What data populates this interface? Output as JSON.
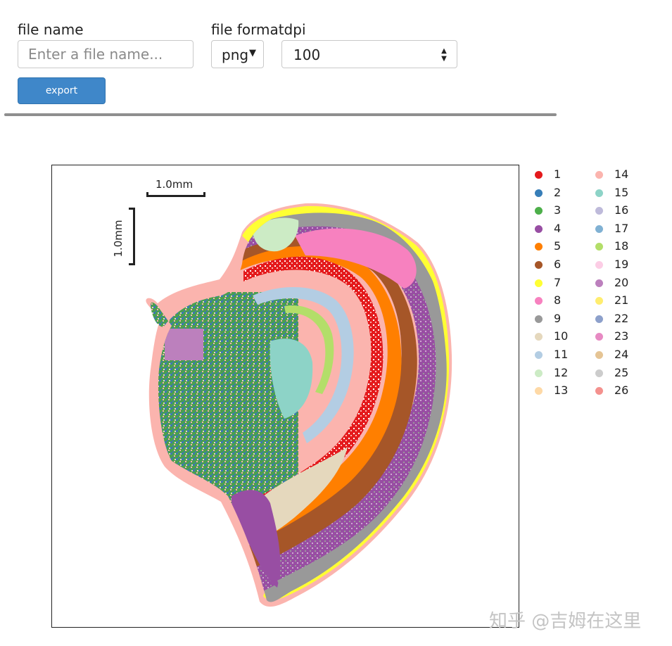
{
  "export_form": {
    "filename_label": "file name",
    "filename_placeholder": "Enter a file name...",
    "filename_value": "",
    "format_label": "file format",
    "format_value": "png",
    "dpi_label": "dpi",
    "dpi_value": "100",
    "export_label": "export"
  },
  "plot": {
    "scalebar_x_label": "1.0mm",
    "scalebar_y_label": "1.0mm"
  },
  "legend": [
    {
      "label": "1",
      "color": "#e41a1c"
    },
    {
      "label": "2",
      "color": "#377eb8"
    },
    {
      "label": "3",
      "color": "#4daf4a"
    },
    {
      "label": "4",
      "color": "#984ea3"
    },
    {
      "label": "5",
      "color": "#ff7f00"
    },
    {
      "label": "6",
      "color": "#a65628"
    },
    {
      "label": "7",
      "color": "#ffff33"
    },
    {
      "label": "8",
      "color": "#f781bf"
    },
    {
      "label": "9",
      "color": "#999999"
    },
    {
      "label": "10",
      "color": "#e5d8bd"
    },
    {
      "label": "11",
      "color": "#b3cde3"
    },
    {
      "label": "12",
      "color": "#ccebc5"
    },
    {
      "label": "13",
      "color": "#fed9a6"
    },
    {
      "label": "14",
      "color": "#fbb4ae"
    },
    {
      "label": "15",
      "color": "#8dd3c7"
    },
    {
      "label": "16",
      "color": "#bebada"
    },
    {
      "label": "17",
      "color": "#80b1d3"
    },
    {
      "label": "18",
      "color": "#b3de69"
    },
    {
      "label": "19",
      "color": "#fccde5"
    },
    {
      "label": "20",
      "color": "#bc80bd"
    },
    {
      "label": "21",
      "color": "#ffed6f"
    },
    {
      "label": "22",
      "color": "#8da0cb"
    },
    {
      "label": "23",
      "color": "#e78ac3"
    },
    {
      "label": "24",
      "color": "#e5c494"
    },
    {
      "label": "25",
      "color": "#cccccc"
    },
    {
      "label": "26",
      "color": "#f4918e"
    }
  ],
  "watermark": "知乎 @吉姆在这里"
}
